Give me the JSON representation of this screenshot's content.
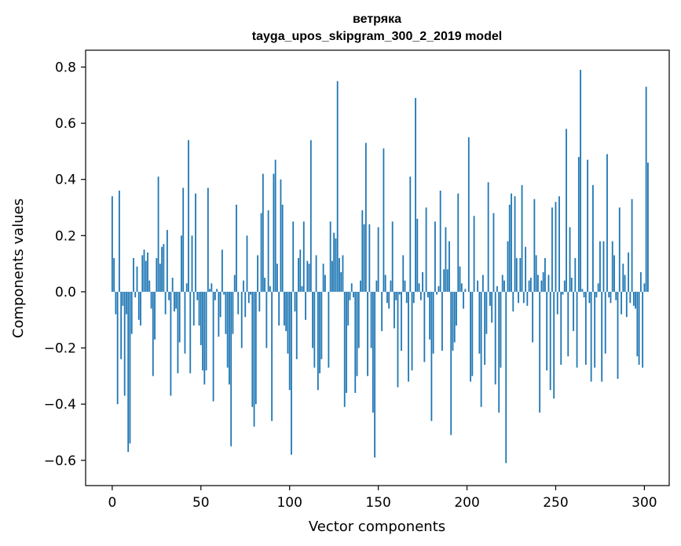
{
  "chart_data": {
    "type": "bar",
    "title_line1": "ветряка",
    "title_line2": "tayga_upos_skipgram_300_2_2019 model",
    "xlabel": "Vector components",
    "ylabel": "Components values",
    "xlim": [
      -15,
      314
    ],
    "ylim": [
      -0.69,
      0.86
    ],
    "xticks": [
      0,
      50,
      100,
      150,
      200,
      250,
      300
    ],
    "yticks": [
      0.8,
      0.6,
      0.4,
      0.2,
      0.0,
      -0.2,
      -0.4,
      -0.6
    ],
    "ytick_labels": [
      "0.8",
      "0.6",
      "0.4",
      "0.2",
      "0.0",
      "−0.2",
      "−0.4",
      "−0.6"
    ],
    "bar_color": "#1f77b4",
    "values": [
      0.34,
      0.12,
      -0.08,
      -0.4,
      0.36,
      -0.24,
      -0.05,
      -0.37,
      -0.08,
      -0.57,
      -0.54,
      -0.15,
      0.12,
      -0.02,
      0.09,
      -0.1,
      -0.12,
      0.13,
      0.15,
      0.11,
      0.14,
      0.04,
      -0.06,
      -0.3,
      -0.17,
      0.12,
      0.41,
      0.1,
      0.16,
      0.17,
      -0.08,
      0.22,
      -0.03,
      -0.37,
      0.05,
      -0.07,
      -0.06,
      -0.29,
      -0.18,
      0.2,
      0.37,
      -0.22,
      0.03,
      0.54,
      -0.29,
      0.2,
      -0.12,
      0.35,
      -0.03,
      -0.12,
      -0.19,
      -0.28,
      -0.33,
      -0.28,
      0.37,
      0.01,
      0.03,
      -0.39,
      -0.03,
      0.01,
      -0.16,
      -0.09,
      0.15,
      -0.01,
      -0.15,
      -0.27,
      -0.33,
      -0.55,
      -0.15,
      0.06,
      0.31,
      -0.08,
      0.0,
      -0.2,
      0.04,
      -0.09,
      0.2,
      -0.04,
      -0.01,
      -0.41,
      -0.48,
      -0.4,
      0.13,
      -0.07,
      0.28,
      0.42,
      0.05,
      -0.2,
      0.29,
      0.02,
      -0.46,
      0.42,
      0.47,
      0.1,
      -0.12,
      0.4,
      0.31,
      -0.12,
      -0.14,
      -0.22,
      -0.35,
      -0.58,
      0.25,
      -0.07,
      -0.24,
      0.12,
      0.15,
      0.02,
      0.25,
      -0.1,
      0.11,
      0.1,
      0.54,
      -0.2,
      -0.27,
      0.13,
      -0.35,
      -0.29,
      -0.24,
      0.1,
      0.06,
      0.0,
      -0.27,
      0.25,
      0.11,
      0.21,
      0.19,
      0.75,
      0.12,
      0.07,
      0.13,
      -0.41,
      -0.36,
      -0.12,
      -0.03,
      0.03,
      -0.02,
      -0.36,
      -0.3,
      -0.2,
      0.04,
      0.29,
      0.24,
      0.53,
      -0.3,
      0.24,
      -0.2,
      -0.43,
      -0.59,
      0.04,
      0.23,
      0.0,
      -0.14,
      0.51,
      0.06,
      -0.04,
      -0.06,
      0.04,
      0.25,
      -0.13,
      -0.03,
      -0.34,
      -0.01,
      -0.21,
      0.13,
      0.04,
      -0.04,
      -0.32,
      0.41,
      -0.28,
      -0.04,
      0.69,
      0.26,
      0.03,
      -0.03,
      0.07,
      -0.25,
      0.3,
      -0.02,
      -0.17,
      -0.46,
      -0.22,
      0.25,
      -0.01,
      0.02,
      0.36,
      -0.21,
      0.08,
      0.23,
      0.08,
      0.18,
      -0.51,
      -0.21,
      -0.18,
      -0.12,
      0.35,
      0.09,
      0.03,
      -0.06,
      0.01,
      0.0,
      0.55,
      -0.32,
      -0.3,
      0.27,
      0.0,
      0.04,
      -0.22,
      -0.41,
      0.06,
      -0.26,
      -0.15,
      0.39,
      -0.05,
      -0.11,
      0.28,
      -0.33,
      0.02,
      -0.43,
      -0.27,
      0.06,
      0.04,
      -0.61,
      0.18,
      0.31,
      0.35,
      -0.07,
      0.34,
      0.12,
      -0.04,
      0.12,
      0.38,
      -0.04,
      0.16,
      -0.05,
      0.04,
      0.05,
      -0.18,
      0.33,
      0.13,
      0.06,
      -0.43,
      0.04,
      0.07,
      0.12,
      -0.28,
      0.06,
      -0.35,
      0.3,
      -0.38,
      0.32,
      -0.08,
      0.34,
      -0.26,
      -0.01,
      0.04,
      0.58,
      -0.23,
      0.23,
      0.05,
      -0.14,
      0.12,
      -0.27,
      0.48,
      0.79,
      0.01,
      -0.02,
      -0.26,
      0.47,
      -0.04,
      -0.32,
      0.38,
      -0.27,
      -0.02,
      0.03,
      0.18,
      -0.32,
      0.18,
      -0.22,
      0.49,
      -0.02,
      -0.04,
      0.18,
      0.13,
      -0.03,
      -0.31,
      0.3,
      -0.08,
      0.1,
      0.06,
      -0.09,
      0.14,
      -0.04,
      0.33,
      -0.05,
      -0.06,
      -0.23,
      -0.26,
      0.07,
      -0.27,
      0.03,
      0.73,
      0.46
    ]
  }
}
